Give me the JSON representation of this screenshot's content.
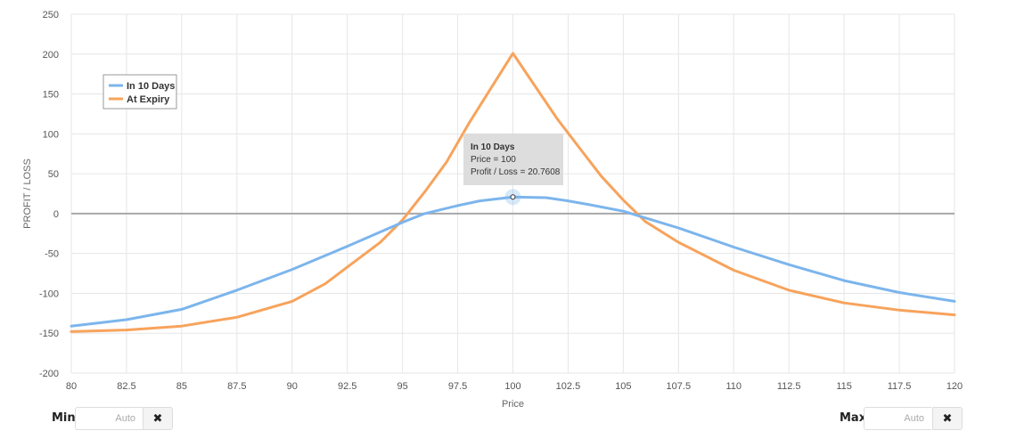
{
  "chart_data": {
    "type": "line",
    "xlabel": "Price",
    "ylabel": "PROFIT / LOSS",
    "xlim": [
      80,
      120
    ],
    "ylim": [
      -200,
      250
    ],
    "x_ticks": [
      "80",
      "82.5",
      "85",
      "87.5",
      "90",
      "92.5",
      "95",
      "97.5",
      "100",
      "102.5",
      "105",
      "107.5",
      "110",
      "112.5",
      "115",
      "117.5",
      "120"
    ],
    "y_ticks": [
      "250",
      "200",
      "150",
      "100",
      "50",
      "0",
      "-50",
      "-100",
      "-150",
      "-200"
    ],
    "grid": true,
    "legend_position": "top-left",
    "series": [
      {
        "name": "In 10 Days",
        "color": "#7cb5ec",
        "points": [
          [
            80,
            -141
          ],
          [
            82.5,
            -133
          ],
          [
            85,
            -120
          ],
          [
            87.5,
            -96
          ],
          [
            90,
            -70
          ],
          [
            92.5,
            -41
          ],
          [
            95,
            -11
          ],
          [
            96,
            0
          ],
          [
            97.5,
            10
          ],
          [
            98.5,
            16
          ],
          [
            100,
            20.8
          ],
          [
            101.5,
            20
          ],
          [
            102.5,
            16
          ],
          [
            103.5,
            11
          ],
          [
            105,
            3
          ],
          [
            107.5,
            -18
          ],
          [
            110,
            -42
          ],
          [
            112.5,
            -64
          ],
          [
            115,
            -84
          ],
          [
            117.5,
            -99
          ],
          [
            120,
            -110
          ]
        ]
      },
      {
        "name": "At Expiry",
        "color": "#f7a35c",
        "points": [
          [
            80,
            -148
          ],
          [
            82.5,
            -146
          ],
          [
            85,
            -141
          ],
          [
            87.5,
            -130
          ],
          [
            90,
            -110
          ],
          [
            91.5,
            -88
          ],
          [
            92.5,
            -67
          ],
          [
            94,
            -36
          ],
          [
            95,
            -8
          ],
          [
            96,
            27
          ],
          [
            97,
            65
          ],
          [
            98,
            113
          ],
          [
            99,
            157
          ],
          [
            100,
            201
          ],
          [
            101,
            160
          ],
          [
            102,
            119
          ],
          [
            103,
            83
          ],
          [
            104,
            47
          ],
          [
            105,
            17
          ],
          [
            106,
            -10
          ],
          [
            107.5,
            -36
          ],
          [
            110,
            -71
          ],
          [
            112.5,
            -96
          ],
          [
            115,
            -112
          ],
          [
            117.5,
            -121
          ],
          [
            120,
            -127
          ]
        ]
      }
    ],
    "tooltip": {
      "title": "In 10 Days",
      "line1": "Price = 100",
      "line2": "Profit / Loss = 20.7608",
      "x": 100,
      "y": 20.7608
    }
  },
  "controls": {
    "min_label": "Min",
    "min_placeholder": "Auto",
    "max_label": "Max",
    "max_placeholder": "Auto",
    "clear_icon": "✖"
  }
}
